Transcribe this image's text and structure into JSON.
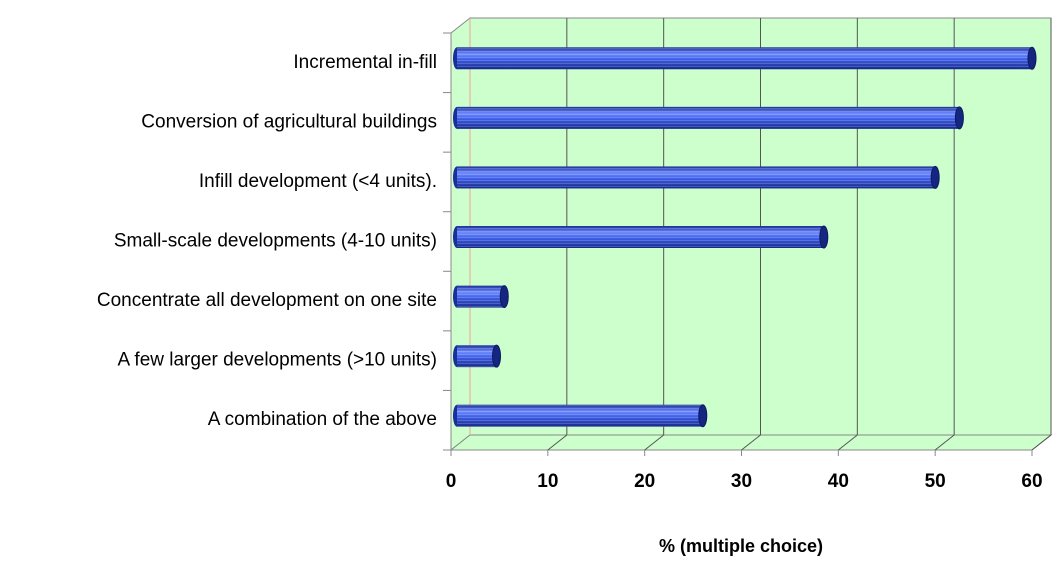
{
  "chart_data": {
    "type": "bar",
    "orientation": "horizontal",
    "categories": [
      "Incremental in-fill",
      "Conversion of agricultural buildings",
      "Infill development (<4 units).",
      "Small-scale developments (4-10 units)",
      "Concentrate all development on one site",
      "A few larger developments (>10 units)",
      "A combination of the above"
    ],
    "values": [
      60,
      52.5,
      50,
      38.5,
      5.5,
      4.7,
      26
    ],
    "color": "#3355dd",
    "xlabel": "% (multiple choice)",
    "xlim": [
      0,
      60
    ],
    "xticks": [
      0,
      10,
      20,
      30,
      40,
      50,
      60
    ],
    "grid": true,
    "wall_color": "#ccffcc"
  }
}
